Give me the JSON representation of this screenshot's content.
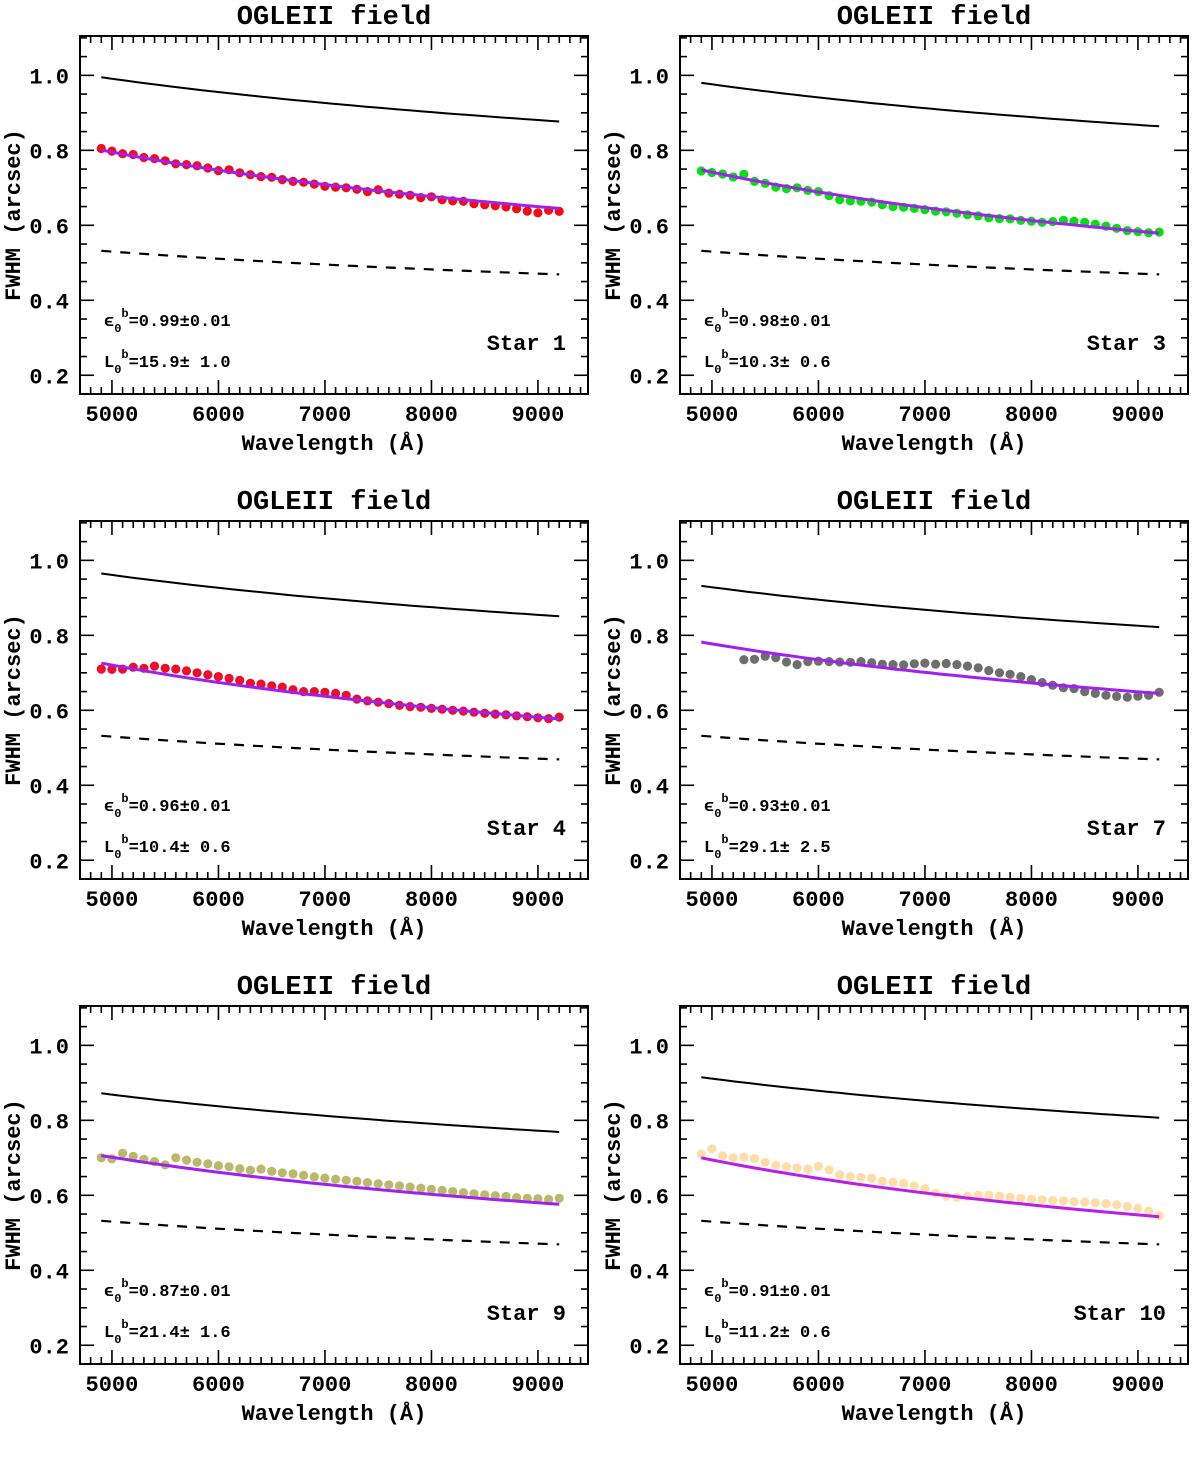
{
  "figure": {
    "background": "#ffffff"
  },
  "chart_data": [
    {
      "type": "scatter",
      "title": "OGLEII field",
      "xlabel": "Wavelength (Å)",
      "ylabel": "FWHM (arcsec)",
      "star": "Star 1",
      "xlim": [
        4700,
        9470
      ],
      "ylim": [
        0.15,
        1.105
      ],
      "xticks": [
        5000,
        6000,
        7000,
        8000,
        9000
      ],
      "xtick_labels": [
        "5000",
        "6000",
        "7000",
        "8000",
        "9000"
      ],
      "yticks": [
        0.2,
        0.4,
        0.6,
        0.8,
        1.0
      ],
      "ytick_labels": [
        "0.2",
        "0.4",
        "0.6",
        "0.8",
        "1.0"
      ],
      "x_minor_step": 100,
      "y_minor_step": 0.05,
      "annotations": {
        "eps": {
          "symbol": "ϵ",
          "sub": "0",
          "sup": "b",
          "text": "=0.99±0.01"
        },
        "L0": {
          "symbol": "L",
          "sub": "0",
          "sup": "b",
          "text": "=15.9± 1.0"
        }
      },
      "upper_curve": {
        "x_start": 4900,
        "x_end": 9200,
        "y_start": 0.995,
        "y_end": 0.877,
        "style": "solid",
        "color": "#000000"
      },
      "lower_curve": {
        "x_start": 4900,
        "x_end": 9200,
        "y_start": 0.532,
        "y_end": 0.469,
        "style": "dashed",
        "color": "#000000"
      },
      "fit_line": {
        "x_start": 4900,
        "x_end": 9200,
        "y_start": 0.801,
        "y_end": 0.645,
        "color": "#a020f0"
      },
      "points": {
        "color": "#f20d16",
        "x_start": 4900,
        "x_step": 100,
        "y": [
          0.805,
          0.798,
          0.791,
          0.789,
          0.781,
          0.778,
          0.772,
          0.764,
          0.762,
          0.759,
          0.753,
          0.746,
          0.748,
          0.74,
          0.735,
          0.73,
          0.728,
          0.722,
          0.717,
          0.715,
          0.71,
          0.704,
          0.702,
          0.7,
          0.696,
          0.69,
          0.695,
          0.686,
          0.683,
          0.68,
          0.674,
          0.676,
          0.668,
          0.665,
          0.664,
          0.658,
          0.655,
          0.652,
          0.649,
          0.644,
          0.638,
          0.633,
          0.64,
          0.637
        ]
      }
    },
    {
      "type": "scatter",
      "title": "OGLEII field",
      "xlabel": "Wavelength (Å)",
      "ylabel": "FWHM (arcsec)",
      "star": "Star 3",
      "xlim": [
        4700,
        9470
      ],
      "ylim": [
        0.15,
        1.105
      ],
      "xticks": [
        5000,
        6000,
        7000,
        8000,
        9000
      ],
      "xtick_labels": [
        "5000",
        "6000",
        "7000",
        "8000",
        "9000"
      ],
      "yticks": [
        0.2,
        0.4,
        0.6,
        0.8,
        1.0
      ],
      "ytick_labels": [
        "0.2",
        "0.4",
        "0.6",
        "0.8",
        "1.0"
      ],
      "x_minor_step": 100,
      "y_minor_step": 0.05,
      "annotations": {
        "eps": {
          "symbol": "ϵ",
          "sub": "0",
          "sup": "b",
          "text": "=0.98±0.01"
        },
        "L0": {
          "symbol": "L",
          "sub": "0",
          "sup": "b",
          "text": "=10.3± 0.6"
        }
      },
      "upper_curve": {
        "x_start": 4900,
        "x_end": 9200,
        "y_start": 0.98,
        "y_end": 0.864,
        "style": "solid",
        "color": "#000000"
      },
      "lower_curve": {
        "x_start": 4900,
        "x_end": 9200,
        "y_start": 0.532,
        "y_end": 0.469,
        "style": "dashed",
        "color": "#000000"
      },
      "fit_line": {
        "x_start": 4900,
        "x_end": 9200,
        "y_start": 0.748,
        "y_end": 0.579,
        "color": "#a020f0"
      },
      "points": {
        "color": "#0bdb14",
        "x_start": 4900,
        "x_step": 100,
        "y": [
          0.745,
          0.741,
          0.737,
          0.729,
          0.736,
          0.717,
          0.712,
          0.702,
          0.698,
          0.7,
          0.693,
          0.69,
          0.679,
          0.668,
          0.665,
          0.664,
          0.662,
          0.655,
          0.65,
          0.648,
          0.645,
          0.642,
          0.638,
          0.636,
          0.632,
          0.628,
          0.625,
          0.62,
          0.618,
          0.617,
          0.613,
          0.611,
          0.608,
          0.61,
          0.613,
          0.611,
          0.608,
          0.603,
          0.598,
          0.592,
          0.586,
          0.583,
          0.58,
          0.582
        ]
      }
    },
    {
      "type": "scatter",
      "title": "OGLEII field",
      "xlabel": "Wavelength (Å)",
      "ylabel": "FWHM (arcsec)",
      "star": "Star 4",
      "xlim": [
        4700,
        9470
      ],
      "ylim": [
        0.15,
        1.105
      ],
      "xticks": [
        5000,
        6000,
        7000,
        8000,
        9000
      ],
      "xtick_labels": [
        "5000",
        "6000",
        "7000",
        "8000",
        "9000"
      ],
      "yticks": [
        0.2,
        0.4,
        0.6,
        0.8,
        1.0
      ],
      "ytick_labels": [
        "0.2",
        "0.4",
        "0.6",
        "0.8",
        "1.0"
      ],
      "x_minor_step": 100,
      "y_minor_step": 0.05,
      "annotations": {
        "eps": {
          "symbol": "ϵ",
          "sub": "0",
          "sup": "b",
          "text": "=0.96±0.01"
        },
        "L0": {
          "symbol": "L",
          "sub": "0",
          "sup": "b",
          "text": "=10.4± 0.6"
        }
      },
      "upper_curve": {
        "x_start": 4900,
        "x_end": 9200,
        "y_start": 0.965,
        "y_end": 0.851,
        "style": "solid",
        "color": "#000000"
      },
      "lower_curve": {
        "x_start": 4900,
        "x_end": 9200,
        "y_start": 0.532,
        "y_end": 0.469,
        "style": "dashed",
        "color": "#000000"
      },
      "fit_line": {
        "x_start": 4900,
        "x_end": 9200,
        "y_start": 0.726,
        "y_end": 0.577,
        "color": "#a020f0"
      },
      "points": {
        "color": "#e8102c",
        "x_start": 4900,
        "x_step": 100,
        "y": [
          0.71,
          0.709,
          0.71,
          0.715,
          0.712,
          0.718,
          0.712,
          0.71,
          0.705,
          0.7,
          0.695,
          0.69,
          0.685,
          0.68,
          0.672,
          0.67,
          0.665,
          0.662,
          0.655,
          0.65,
          0.65,
          0.648,
          0.645,
          0.64,
          0.63,
          0.625,
          0.622,
          0.618,
          0.613,
          0.61,
          0.608,
          0.605,
          0.603,
          0.6,
          0.598,
          0.595,
          0.592,
          0.59,
          0.588,
          0.585,
          0.583,
          0.58,
          0.578,
          0.582
        ]
      }
    },
    {
      "type": "scatter",
      "title": "OGLEII field",
      "xlabel": "Wavelength (Å)",
      "ylabel": "FWHM (arcsec)",
      "star": "Star 7",
      "xlim": [
        4700,
        9470
      ],
      "ylim": [
        0.15,
        1.105
      ],
      "xticks": [
        5000,
        6000,
        7000,
        8000,
        9000
      ],
      "xtick_labels": [
        "5000",
        "6000",
        "7000",
        "8000",
        "9000"
      ],
      "yticks": [
        0.2,
        0.4,
        0.6,
        0.8,
        1.0
      ],
      "ytick_labels": [
        "0.2",
        "0.4",
        "0.6",
        "0.8",
        "1.0"
      ],
      "x_minor_step": 100,
      "y_minor_step": 0.05,
      "annotations": {
        "eps": {
          "symbol": "ϵ",
          "sub": "0",
          "sup": "b",
          "text": "=0.93±0.01"
        },
        "L0": {
          "symbol": "L",
          "sub": "0",
          "sup": "b",
          "text": "=29.1± 2.5"
        }
      },
      "upper_curve": {
        "x_start": 4900,
        "x_end": 9200,
        "y_start": 0.932,
        "y_end": 0.822,
        "style": "solid",
        "color": "#000000"
      },
      "lower_curve": {
        "x_start": 4900,
        "x_end": 9200,
        "y_start": 0.532,
        "y_end": 0.469,
        "style": "dashed",
        "color": "#000000"
      },
      "fit_line": {
        "x_start": 4900,
        "x_end": 9200,
        "y_start": 0.782,
        "y_end": 0.645,
        "color": "#a020f0"
      },
      "points": {
        "color": "#6e6e6e",
        "x_start": 5300,
        "x_step": 100,
        "y": [
          0.735,
          0.736,
          0.744,
          0.74,
          0.729,
          0.722,
          0.73,
          0.731,
          0.73,
          0.729,
          0.728,
          0.73,
          0.727,
          0.723,
          0.722,
          0.721,
          0.724,
          0.726,
          0.723,
          0.725,
          0.722,
          0.718,
          0.713,
          0.706,
          0.7,
          0.696,
          0.69,
          0.682,
          0.674,
          0.667,
          0.66,
          0.658,
          0.65,
          0.645,
          0.64,
          0.637,
          0.635,
          0.638,
          0.64,
          0.648
        ]
      }
    },
    {
      "type": "scatter",
      "title": "OGLEII field",
      "xlabel": "Wavelength (Å)",
      "ylabel": "FWHM (arcsec)",
      "star": "Star 9",
      "xlim": [
        4700,
        9470
      ],
      "ylim": [
        0.15,
        1.105
      ],
      "xticks": [
        5000,
        6000,
        7000,
        8000,
        9000
      ],
      "xtick_labels": [
        "5000",
        "6000",
        "7000",
        "8000",
        "9000"
      ],
      "yticks": [
        0.2,
        0.4,
        0.6,
        0.8,
        1.0
      ],
      "ytick_labels": [
        "0.2",
        "0.4",
        "0.6",
        "0.8",
        "1.0"
      ],
      "x_minor_step": 100,
      "y_minor_step": 0.05,
      "annotations": {
        "eps": {
          "symbol": "ϵ",
          "sub": "0",
          "sup": "b",
          "text": "=0.87±0.01"
        },
        "L0": {
          "symbol": "L",
          "sub": "0",
          "sup": "b",
          "text": "=21.4± 1.6"
        }
      },
      "upper_curve": {
        "x_start": 4900,
        "x_end": 9200,
        "y_start": 0.872,
        "y_end": 0.769,
        "style": "solid",
        "color": "#000000"
      },
      "lower_curve": {
        "x_start": 4900,
        "x_end": 9200,
        "y_start": 0.532,
        "y_end": 0.469,
        "style": "dashed",
        "color": "#000000"
      },
      "fit_line": {
        "x_start": 4900,
        "x_end": 9200,
        "y_start": 0.706,
        "y_end": 0.576,
        "color": "#a020f0"
      },
      "points": {
        "color": "#bdb76b",
        "x_start": 4900,
        "x_step": 100,
        "y": [
          0.7,
          0.697,
          0.712,
          0.704,
          0.696,
          0.69,
          0.681,
          0.7,
          0.694,
          0.688,
          0.684,
          0.679,
          0.676,
          0.671,
          0.667,
          0.67,
          0.664,
          0.66,
          0.657,
          0.653,
          0.649,
          0.646,
          0.643,
          0.64,
          0.637,
          0.634,
          0.631,
          0.628,
          0.625,
          0.622,
          0.619,
          0.616,
          0.613,
          0.61,
          0.607,
          0.604,
          0.601,
          0.599,
          0.597,
          0.594,
          0.592,
          0.591,
          0.589,
          0.592
        ]
      }
    },
    {
      "type": "scatter",
      "title": "OGLEII field",
      "xlabel": "Wavelength (Å)",
      "ylabel": "FWHM (arcsec)",
      "star": "Star 10",
      "xlim": [
        4700,
        9470
      ],
      "ylim": [
        0.15,
        1.105
      ],
      "xticks": [
        5000,
        6000,
        7000,
        8000,
        9000
      ],
      "xtick_labels": [
        "5000",
        "6000",
        "7000",
        "8000",
        "9000"
      ],
      "yticks": [
        0.2,
        0.4,
        0.6,
        0.8,
        1.0
      ],
      "ytick_labels": [
        "0.2",
        "0.4",
        "0.6",
        "0.8",
        "1.0"
      ],
      "x_minor_step": 100,
      "y_minor_step": 0.05,
      "annotations": {
        "eps": {
          "symbol": "ϵ",
          "sub": "0",
          "sup": "b",
          "text": "=0.91±0.01"
        },
        "L0": {
          "symbol": "L",
          "sub": "0",
          "sup": "b",
          "text": "=11.2± 0.6"
        }
      },
      "upper_curve": {
        "x_start": 4900,
        "x_end": 9200,
        "y_start": 0.915,
        "y_end": 0.807,
        "style": "solid",
        "color": "#000000"
      },
      "lower_curve": {
        "x_start": 4900,
        "x_end": 9200,
        "y_start": 0.532,
        "y_end": 0.469,
        "style": "dashed",
        "color": "#000000"
      },
      "fit_line": {
        "x_start": 4900,
        "x_end": 9200,
        "y_start": 0.7,
        "y_end": 0.543,
        "color": "#bb1ee8"
      },
      "points": {
        "color": "#ffdca8",
        "x_start": 4900,
        "x_step": 100,
        "y": [
          0.71,
          0.724,
          0.705,
          0.7,
          0.702,
          0.698,
          0.688,
          0.68,
          0.676,
          0.673,
          0.67,
          0.677,
          0.668,
          0.655,
          0.65,
          0.648,
          0.645,
          0.637,
          0.635,
          0.632,
          0.625,
          0.618,
          0.605,
          0.598,
          0.595,
          0.598,
          0.6,
          0.6,
          0.598,
          0.595,
          0.592,
          0.59,
          0.588,
          0.586,
          0.585,
          0.583,
          0.582,
          0.58,
          0.578,
          0.575,
          0.57,
          0.565,
          0.558,
          0.545
        ]
      }
    }
  ]
}
